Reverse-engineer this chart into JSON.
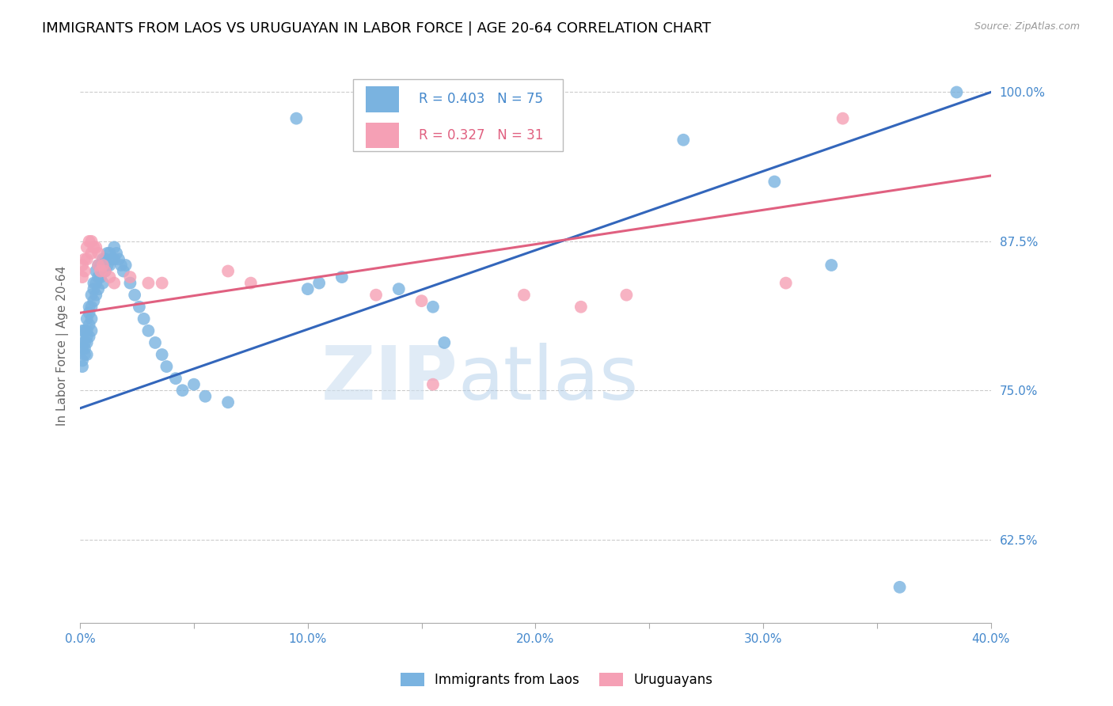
{
  "title": "IMMIGRANTS FROM LAOS VS URUGUAYAN IN LABOR FORCE | AGE 20-64 CORRELATION CHART",
  "source": "Source: ZipAtlas.com",
  "ylabel": "In Labor Force | Age 20-64",
  "xlim": [
    0.0,
    0.4
  ],
  "ylim": [
    0.555,
    1.02
  ],
  "xticks": [
    0.0,
    0.05,
    0.1,
    0.15,
    0.2,
    0.25,
    0.3,
    0.35,
    0.4
  ],
  "xticklabels": [
    "0.0%",
    "",
    "10.0%",
    "",
    "20.0%",
    "",
    "30.0%",
    "",
    "40.0%"
  ],
  "yticks_right": [
    0.625,
    0.75,
    0.875,
    1.0
  ],
  "yticklabels_right": [
    "62.5%",
    "75.0%",
    "87.5%",
    "100.0%"
  ],
  "grid_color": "#cccccc",
  "watermark_zip": "ZIP",
  "watermark_atlas": "atlas",
  "blue_color": "#7ab3e0",
  "pink_color": "#f5a0b5",
  "blue_line_color": "#3366bb",
  "pink_line_color": "#e06080",
  "R_blue": 0.403,
  "N_blue": 75,
  "R_pink": 0.327,
  "N_pink": 31,
  "blue_x": [
    0.001,
    0.001,
    0.001,
    0.001,
    0.001,
    0.002,
    0.002,
    0.002,
    0.002,
    0.003,
    0.003,
    0.003,
    0.003,
    0.003,
    0.004,
    0.004,
    0.004,
    0.004,
    0.005,
    0.005,
    0.005,
    0.005,
    0.006,
    0.006,
    0.006,
    0.007,
    0.007,
    0.007,
    0.008,
    0.008,
    0.008,
    0.009,
    0.009,
    0.01,
    0.01,
    0.01,
    0.011,
    0.011,
    0.012,
    0.012,
    0.013,
    0.013,
    0.014,
    0.015,
    0.015,
    0.016,
    0.017,
    0.018,
    0.019,
    0.02,
    0.022,
    0.024,
    0.026,
    0.028,
    0.03,
    0.033,
    0.036,
    0.038,
    0.042,
    0.045,
    0.05,
    0.055,
    0.065,
    0.095,
    0.1,
    0.105,
    0.115,
    0.14,
    0.155,
    0.16,
    0.265,
    0.305,
    0.33,
    0.36,
    0.385
  ],
  "blue_y": [
    0.8,
    0.79,
    0.785,
    0.775,
    0.77,
    0.8,
    0.79,
    0.785,
    0.78,
    0.81,
    0.8,
    0.795,
    0.79,
    0.78,
    0.82,
    0.815,
    0.805,
    0.795,
    0.83,
    0.82,
    0.81,
    0.8,
    0.84,
    0.835,
    0.825,
    0.85,
    0.84,
    0.83,
    0.855,
    0.845,
    0.835,
    0.855,
    0.845,
    0.86,
    0.85,
    0.84,
    0.86,
    0.85,
    0.865,
    0.855,
    0.865,
    0.855,
    0.86,
    0.87,
    0.86,
    0.865,
    0.86,
    0.855,
    0.85,
    0.855,
    0.84,
    0.83,
    0.82,
    0.81,
    0.8,
    0.79,
    0.78,
    0.77,
    0.76,
    0.75,
    0.755,
    0.745,
    0.74,
    0.978,
    0.835,
    0.84,
    0.845,
    0.835,
    0.82,
    0.79,
    0.96,
    0.925,
    0.855,
    0.585,
    1.0
  ],
  "pink_x": [
    0.001,
    0.001,
    0.002,
    0.002,
    0.003,
    0.003,
    0.004,
    0.005,
    0.005,
    0.006,
    0.007,
    0.008,
    0.008,
    0.009,
    0.01,
    0.011,
    0.013,
    0.015,
    0.022,
    0.03,
    0.036,
    0.065,
    0.075,
    0.13,
    0.15,
    0.155,
    0.195,
    0.22,
    0.24,
    0.31,
    0.335
  ],
  "pink_y": [
    0.855,
    0.845,
    0.86,
    0.85,
    0.87,
    0.86,
    0.875,
    0.875,
    0.865,
    0.87,
    0.87,
    0.865,
    0.855,
    0.85,
    0.855,
    0.85,
    0.845,
    0.84,
    0.845,
    0.84,
    0.84,
    0.85,
    0.84,
    0.83,
    0.825,
    0.755,
    0.83,
    0.82,
    0.83,
    0.84,
    0.978
  ],
  "axis_label_color": "#666666",
  "tick_color": "#4488cc",
  "title_fontsize": 13,
  "label_fontsize": 11,
  "tick_fontsize": 11
}
